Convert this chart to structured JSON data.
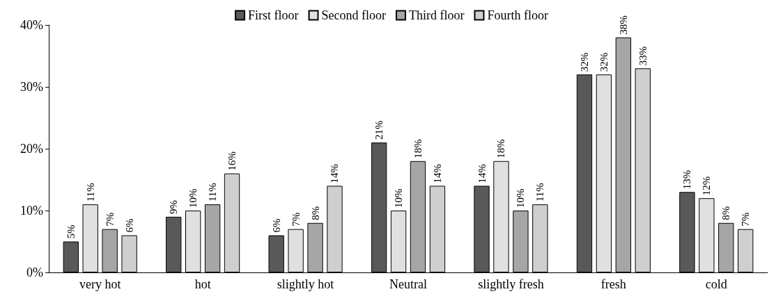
{
  "chart_data": {
    "type": "bar",
    "categories": [
      "very hot",
      "hot",
      "slightly hot",
      "Neutral",
      "slightly fresh",
      "fresh",
      "cold"
    ],
    "series": [
      {
        "name": "First floor",
        "color": "#595959",
        "values": [
          5,
          9,
          6,
          21,
          14,
          32,
          13
        ],
        "value_labels": [
          "5%",
          "9%",
          "6%",
          "21%",
          "14%",
          "32%",
          "13%"
        ]
      },
      {
        "name": "Second floor",
        "color": "#e0e0e0",
        "values": [
          11,
          10,
          7,
          10,
          18,
          32,
          12
        ],
        "value_labels": [
          "11%",
          "10%",
          "7%",
          "10%",
          "18%",
          "32%",
          "12%"
        ]
      },
      {
        "name": "Third floor",
        "color": "#a6a6a6",
        "values": [
          7,
          11,
          8,
          18,
          10,
          38,
          8
        ],
        "value_labels": [
          "7%",
          "11%",
          "8%",
          "18%",
          "10%",
          "38%",
          "8%"
        ]
      },
      {
        "name": "Fourth floor",
        "color": "#cfcfcf",
        "values": [
          6,
          16,
          14,
          14,
          11,
          33,
          7
        ],
        "value_labels": [
          "6%",
          "16%",
          "14%",
          "14%",
          "11%",
          "33%",
          "7%"
        ]
      }
    ],
    "ylim": [
      0,
      40
    ],
    "yticks": [
      {
        "value": 0,
        "label": "0%"
      },
      {
        "value": 10,
        "label": "10%"
      },
      {
        "value": 20,
        "label": "20%"
      },
      {
        "value": 30,
        "label": "30%"
      },
      {
        "value": 40,
        "label": "40%"
      }
    ],
    "grid": false,
    "legend": "top"
  }
}
